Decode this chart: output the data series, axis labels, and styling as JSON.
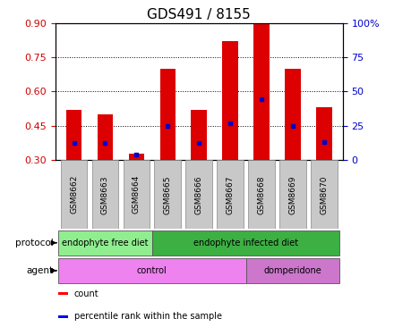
{
  "title": "GDS491 / 8155",
  "samples": [
    "GSM8662",
    "GSM8663",
    "GSM8664",
    "GSM8665",
    "GSM8666",
    "GSM8667",
    "GSM8668",
    "GSM8669",
    "GSM8670"
  ],
  "red_values": [
    0.52,
    0.5,
    0.33,
    0.7,
    0.52,
    0.82,
    0.9,
    0.7,
    0.53
  ],
  "blue_values": [
    0.375,
    0.375,
    0.325,
    0.45,
    0.375,
    0.46,
    0.565,
    0.45,
    0.38
  ],
  "ylim_left": [
    0.3,
    0.9
  ],
  "ylim_right": [
    0,
    100
  ],
  "yticks_left": [
    0.3,
    0.45,
    0.6,
    0.75,
    0.9
  ],
  "yticks_right": [
    0,
    25,
    50,
    75,
    100
  ],
  "ytick_labels_right": [
    "0",
    "25",
    "50",
    "75",
    "100%"
  ],
  "protocol_groups": [
    {
      "label": "endophyte free diet",
      "start": 0,
      "end": 3,
      "color": "#90EE90"
    },
    {
      "label": "endophyte infected diet",
      "start": 3,
      "end": 9,
      "color": "#3CB043"
    }
  ],
  "agent_groups": [
    {
      "label": "control",
      "start": 0,
      "end": 6,
      "color": "#EE82EE"
    },
    {
      "label": "domperidone",
      "start": 6,
      "end": 9,
      "color": "#CC77CC"
    }
  ],
  "legend_items": [
    {
      "label": "count",
      "color": "#FF0000"
    },
    {
      "label": "percentile rank within the sample",
      "color": "#0000FF"
    }
  ],
  "bar_width": 0.5,
  "bar_bottom": 0.3,
  "title_fontsize": 11,
  "tick_fontsize": 8,
  "label_fontsize": 8,
  "red_color": "#DD0000",
  "blue_color": "#0000CC",
  "left_tick_color": "#CC0000",
  "right_tick_color": "#0000CC",
  "bg_color": "#FFFFFF",
  "grid_color": "#000000",
  "plot_bg": "#FFFFFF"
}
